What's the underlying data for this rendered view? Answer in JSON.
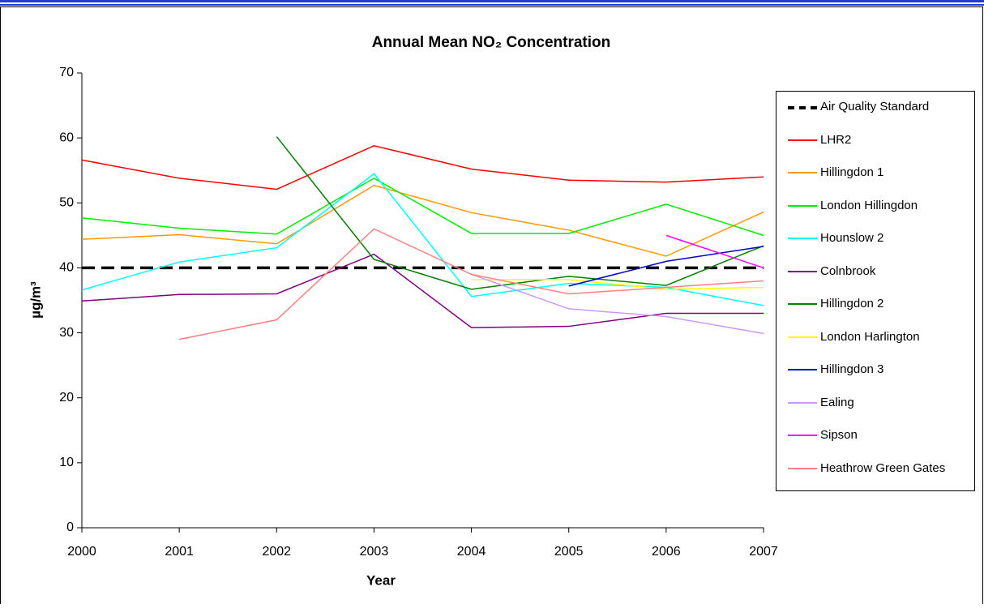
{
  "chart_data": {
    "type": "line",
    "title": "Annual Mean NO₂ Concentration",
    "x_label": "Year",
    "y_label": "µg/m³",
    "x": [
      2000,
      2001,
      2002,
      2003,
      2004,
      2005,
      2006,
      2007
    ],
    "xlim": [
      2000,
      2007
    ],
    "xticks": [
      2000,
      2001,
      2002,
      2003,
      2004,
      2005,
      2006,
      2007
    ],
    "ylim": [
      0,
      70
    ],
    "yticks": [
      0,
      10,
      20,
      30,
      40,
      50,
      60,
      70
    ],
    "legend": "right",
    "series": [
      {
        "name": "Air Quality Standard",
        "color": "#000000",
        "dashed": true,
        "values": [
          40,
          40,
          40,
          40,
          40,
          40,
          40,
          40
        ]
      },
      {
        "name": "LHR2",
        "color": "#ff0000",
        "values": [
          56.6,
          53.8,
          52.1,
          58.8,
          55.2,
          53.5,
          53.2,
          54.0
        ]
      },
      {
        "name": "Hillingdon 1",
        "color": "#ff9900",
        "values": [
          44.4,
          45.1,
          43.7,
          52.7,
          48.5,
          45.8,
          41.8,
          48.6
        ]
      },
      {
        "name": "London Hillingdon",
        "color": "#00ee00",
        "values": [
          47.7,
          46.1,
          45.2,
          53.8,
          45.3,
          45.3,
          49.8,
          45.0
        ]
      },
      {
        "name": "Hounslow 2",
        "color": "#00ffff",
        "values": [
          36.6,
          40.9,
          43.1,
          54.5,
          35.6,
          37.6,
          37.0,
          34.2
        ]
      },
      {
        "name": "Colnbrook",
        "color": "#800080",
        "values": [
          34.9,
          35.9,
          36.0,
          42.1,
          30.8,
          31.0,
          33.0,
          33.0
        ]
      },
      {
        "name": "Hillingdon 2",
        "color": "#008000",
        "values": [
          null,
          null,
          60.2,
          41.3,
          36.7,
          38.7,
          37.3,
          43.4
        ]
      },
      {
        "name": "London Harlington",
        "color": "#ffff00",
        "values": [
          null,
          null,
          null,
          null,
          38.2,
          38.2,
          36.7,
          37.0
        ]
      },
      {
        "name": "Hillingdon 3",
        "color": "#0000cc",
        "values": [
          null,
          null,
          null,
          null,
          null,
          37.2,
          41.0,
          43.3
        ]
      },
      {
        "name": "Ealing",
        "color": "#cc99ff",
        "values": [
          null,
          null,
          null,
          null,
          39.0,
          33.7,
          32.5,
          29.9
        ]
      },
      {
        "name": "Sipson",
        "color": "#ff00ff",
        "values": [
          null,
          null,
          null,
          null,
          null,
          null,
          45.0,
          40.0
        ]
      },
      {
        "name": "Heathrow Green Gates",
        "color": "#ff8080",
        "values": [
          null,
          29.0,
          32.0,
          46.0,
          39.0,
          36.0,
          37.0,
          38.0
        ]
      }
    ]
  }
}
